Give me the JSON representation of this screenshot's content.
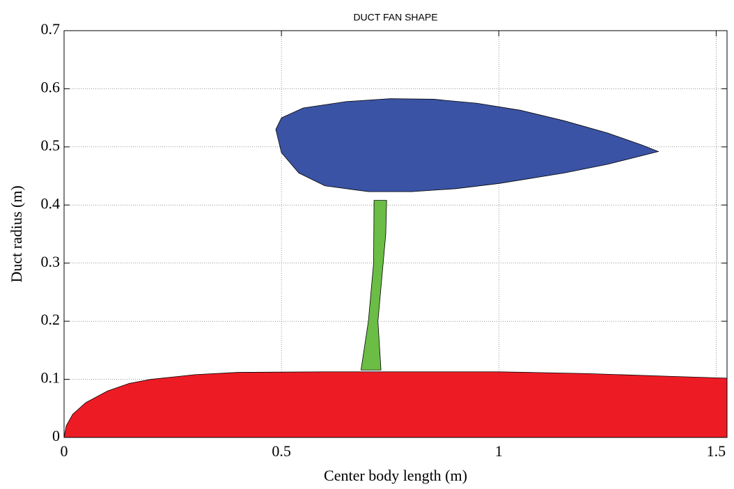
{
  "chart_data": {
    "type": "fill",
    "title": "DUCT FAN SHAPE",
    "xlabel": "Center body length (m)",
    "ylabel": "Duct radius (m)",
    "xlim": [
      0,
      1.525
    ],
    "ylim": [
      0,
      0.7
    ],
    "xticks": [
      0,
      0.5,
      1,
      1.5
    ],
    "yticks": [
      0,
      0.1,
      0.2,
      0.3,
      0.4,
      0.5,
      0.6,
      0.7
    ],
    "grid": true,
    "series": [
      {
        "color": "#ed1c24",
        "x": [
          0,
          0.005,
          0.02,
          0.05,
          0.1,
          0.15,
          0.2,
          0.3,
          0.4,
          0.6,
          1.0,
          1.2,
          1.4,
          1.525,
          1.525,
          0
        ],
        "y": [
          0,
          0.02,
          0.04,
          0.06,
          0.08,
          0.093,
          0.1,
          0.108,
          0.112,
          0.113,
          0.113,
          0.11,
          0.105,
          0.102,
          0,
          0
        ]
      },
      {
        "color": "#6bbd45",
        "x": [
          0.683,
          0.729,
          0.722,
          0.74,
          0.742,
          0.713,
          0.712,
          0.7
        ],
        "y": [
          0.116,
          0.116,
          0.2,
          0.35,
          0.408,
          0.408,
          0.3,
          0.2
        ]
      },
      {
        "color": "#3a53a4",
        "x": [
          0.487,
          0.5,
          0.55,
          0.65,
          0.75,
          0.85,
          0.95,
          1.05,
          1.15,
          1.25,
          1.33,
          1.367,
          1.33,
          1.25,
          1.15,
          1.0,
          0.9,
          0.8,
          0.7,
          0.6,
          0.54,
          0.5
        ],
        "y": [
          0.53,
          0.55,
          0.567,
          0.578,
          0.583,
          0.582,
          0.575,
          0.563,
          0.545,
          0.524,
          0.503,
          0.492,
          0.485,
          0.47,
          0.455,
          0.437,
          0.428,
          0.423,
          0.423,
          0.433,
          0.455,
          0.49
        ]
      }
    ]
  }
}
